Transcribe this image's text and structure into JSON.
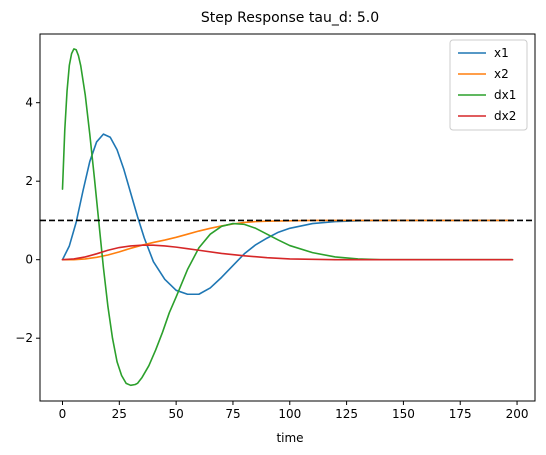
{
  "chart_data": {
    "type": "line",
    "title": "Step Response tau_d: 5.0",
    "xlabel": "time",
    "ylabel": "",
    "xlim": [
      -9.9,
      207.9
    ],
    "ylim": [
      -3.6,
      5.75
    ],
    "xticks": [
      0,
      25,
      50,
      75,
      100,
      125,
      150,
      175,
      200
    ],
    "yticks": [
      -2,
      0,
      2,
      4
    ],
    "ytick_labels": [
      "−2",
      "0",
      "2",
      "4"
    ],
    "grid": false,
    "legend_position": "top-right",
    "reference_line": {
      "y": 1.0,
      "style": "dashed",
      "color": "#000000"
    },
    "series": [
      {
        "name": "x1",
        "color": "#1f77b4",
        "x": [
          0,
          3,
          6,
          9,
          12,
          15,
          18,
          21,
          24,
          27,
          30,
          33,
          36,
          40,
          45,
          50,
          55,
          60,
          65,
          70,
          75,
          80,
          85,
          90,
          95,
          100,
          110,
          120,
          130,
          140,
          150,
          160,
          170,
          180,
          190,
          198
        ],
        "y": [
          0,
          0.35,
          0.95,
          1.75,
          2.5,
          3.0,
          3.2,
          3.12,
          2.8,
          2.3,
          1.7,
          1.1,
          0.55,
          -0.05,
          -0.5,
          -0.78,
          -0.88,
          -0.88,
          -0.72,
          -0.45,
          -0.15,
          0.15,
          0.38,
          0.55,
          0.7,
          0.8,
          0.92,
          0.97,
          0.99,
          1.0,
          1.0,
          1.0,
          1.0,
          1.0,
          1.0,
          1.0
        ]
      },
      {
        "name": "x2",
        "color": "#ff7f0e",
        "x": [
          0,
          5,
          10,
          15,
          20,
          25,
          30,
          35,
          40,
          45,
          50,
          55,
          60,
          65,
          70,
          75,
          80,
          85,
          90,
          100,
          110,
          120,
          130,
          140,
          150,
          160,
          170,
          180,
          190,
          198
        ],
        "y": [
          0,
          0.0,
          0.02,
          0.06,
          0.12,
          0.2,
          0.29,
          0.37,
          0.44,
          0.5,
          0.57,
          0.65,
          0.73,
          0.8,
          0.86,
          0.91,
          0.95,
          0.97,
          0.98,
          0.99,
          1.0,
          1.0,
          1.0,
          1.0,
          1.0,
          1.0,
          1.0,
          1.0,
          1.0,
          1.0
        ]
      },
      {
        "name": "dx1",
        "color": "#2ca02c",
        "x": [
          0,
          1,
          2,
          3,
          4,
          5,
          6,
          7,
          8,
          10,
          12,
          14,
          16,
          18,
          20,
          22,
          24,
          26,
          28,
          30,
          32,
          33,
          35,
          38,
          41,
          44,
          47,
          50,
          55,
          60,
          65,
          70,
          75,
          80,
          85,
          90,
          95,
          100,
          110,
          120,
          130,
          140,
          150,
          160,
          175,
          190,
          198
        ],
        "y": [
          1.8,
          3.3,
          4.3,
          4.95,
          5.25,
          5.37,
          5.35,
          5.2,
          4.95,
          4.2,
          3.2,
          2.1,
          0.95,
          -0.2,
          -1.2,
          -2.0,
          -2.6,
          -2.95,
          -3.15,
          -3.2,
          -3.18,
          -3.15,
          -3.0,
          -2.7,
          -2.3,
          -1.85,
          -1.35,
          -0.95,
          -0.25,
          0.3,
          0.65,
          0.85,
          0.92,
          0.9,
          0.8,
          0.65,
          0.5,
          0.36,
          0.18,
          0.07,
          0.02,
          0.0,
          0.0,
          0.0,
          0.0,
          0.0,
          0.0
        ]
      },
      {
        "name": "dx2",
        "color": "#d62728",
        "x": [
          0,
          5,
          10,
          15,
          20,
          25,
          30,
          35,
          40,
          45,
          50,
          55,
          60,
          70,
          80,
          90,
          100,
          110,
          120,
          130,
          140,
          150,
          160,
          175,
          190,
          198
        ],
        "y": [
          0,
          0.02,
          0.07,
          0.15,
          0.24,
          0.31,
          0.35,
          0.37,
          0.37,
          0.35,
          0.32,
          0.28,
          0.24,
          0.16,
          0.1,
          0.05,
          0.02,
          0.01,
          0.0,
          0.0,
          0.0,
          0.0,
          0.0,
          0.0,
          0.0,
          0.0
        ]
      }
    ]
  }
}
